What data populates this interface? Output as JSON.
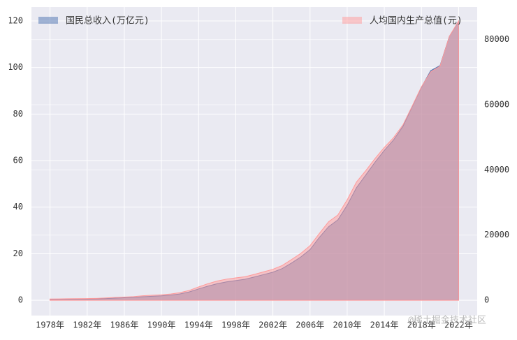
{
  "chart_data": {
    "type": "area",
    "x": [
      1978,
      1979,
      1980,
      1981,
      1982,
      1983,
      1984,
      1985,
      1986,
      1987,
      1988,
      1989,
      1990,
      1991,
      1992,
      1993,
      1994,
      1995,
      1996,
      1997,
      1998,
      1999,
      2000,
      2001,
      2002,
      2003,
      2004,
      2005,
      2006,
      2007,
      2008,
      2009,
      2010,
      2011,
      2012,
      2013,
      2014,
      2015,
      2016,
      2017,
      2018,
      2019,
      2020,
      2021,
      2022
    ],
    "series": [
      {
        "name": "国民总收入(万亿元)",
        "color": "#4c72b0",
        "axis": "y",
        "values": [
          0.37,
          0.41,
          0.46,
          0.49,
          0.54,
          0.6,
          0.73,
          0.91,
          1.04,
          1.21,
          1.51,
          1.7,
          1.87,
          2.2,
          2.7,
          3.57,
          4.86,
          6.03,
          7.1,
          7.89,
          8.44,
          9.01,
          9.98,
          11.01,
          12.04,
          13.58,
          15.95,
          18.56,
          21.75,
          26.98,
          31.59,
          34.52,
          40.82,
          48.33,
          53.8,
          59.3,
          64.36,
          68.89,
          74.64,
          83.2,
          91.53,
          98.65,
          100.8,
          113.35,
          119.79
        ]
      },
      {
        "name": "人均国内生产总值(元)",
        "color": "#ff9999",
        "axis": "y2",
        "values": [
          385,
          423,
          468,
          497,
          533,
          588,
          702,
          866,
          973,
          1123,
          1378,
          1536,
          1663,
          1912,
          2334,
          3027,
          4081,
          5091,
          5898,
          6481,
          6860,
          7229,
          7942,
          8717,
          9506,
          10666,
          12487,
          14368,
          16738,
          20494,
          24100,
          26180,
          30808,
          36277,
          39771,
          43497,
          46912,
          49922,
          53783,
          59592,
          65534,
          70078,
          71828,
          80976,
          85698
        ]
      }
    ],
    "xlim": [
      1976,
      2024
    ],
    "xticks": [
      {
        "value": 1978,
        "label": "1978年"
      },
      {
        "value": 1982,
        "label": "1982年"
      },
      {
        "value": 1986,
        "label": "1986年"
      },
      {
        "value": 1990,
        "label": "1990年"
      },
      {
        "value": 1994,
        "label": "1994年"
      },
      {
        "value": 1998,
        "label": "1998年"
      },
      {
        "value": 2002,
        "label": "2002年"
      },
      {
        "value": 2006,
        "label": "2006年"
      },
      {
        "value": 2010,
        "label": "2010年"
      },
      {
        "value": 2014,
        "label": "2014年"
      },
      {
        "value": 2018,
        "label": "2018年"
      },
      {
        "value": 2022,
        "label": "2022年"
      }
    ],
    "ylim": [
      -6.6,
      126
    ],
    "yticks": [
      0,
      20,
      40,
      60,
      80,
      100,
      120
    ],
    "y2lim": [
      -4700,
      90000
    ],
    "y2ticks": [
      0,
      20000,
      40000,
      60000,
      80000
    ],
    "grid": true,
    "annotation": "@稀土掘金技术社区"
  }
}
